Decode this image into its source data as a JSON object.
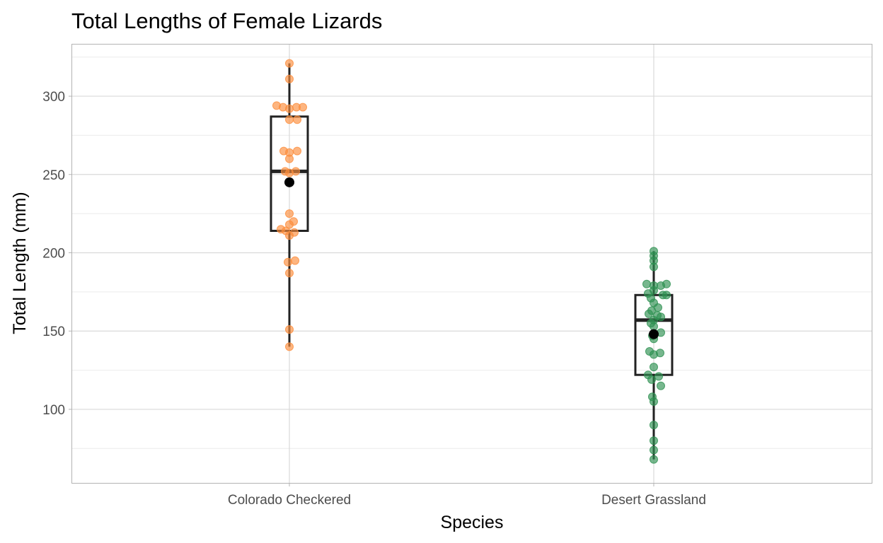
{
  "chart_data": {
    "type": "box",
    "title": "Total Lengths of Female Lizards",
    "xlabel": "Species",
    "ylabel": "Total Length (mm)",
    "categories": [
      "Colorado Checkered",
      "Desert Grassland"
    ],
    "ylim": [
      53,
      333
    ],
    "yticks": [
      100,
      150,
      200,
      250,
      300
    ],
    "grid": true,
    "colors": {
      "Colorado Checkered": "#fc8d3c",
      "Desert Grassland": "#2e9151",
      "box": "#222222",
      "mean": "#000000"
    },
    "boxes": [
      {
        "category": "Colorado Checkered",
        "min": 140,
        "q1": 214,
        "median": 252,
        "q3": 287,
        "max": 321,
        "mean": 245
      },
      {
        "category": "Desert Grassland",
        "min": 68,
        "q1": 122,
        "median": 157,
        "q3": 173,
        "max": 201,
        "mean": 148
      }
    ],
    "points": [
      {
        "category": "Colorado Checkered",
        "values": [
          321,
          311,
          294,
          293,
          293,
          293,
          292,
          285,
          285,
          265,
          265,
          264,
          260,
          252,
          252,
          251,
          225,
          220,
          218,
          215,
          214,
          213,
          211,
          195,
          194,
          187,
          151,
          140
        ],
        "jitter": [
          0,
          0,
          -18,
          -9,
          10,
          19,
          0,
          0,
          11,
          -8,
          11,
          0,
          0,
          -6,
          9,
          0,
          0,
          6,
          0,
          -12,
          -5,
          7,
          0,
          8,
          -2,
          0,
          0,
          0
        ]
      },
      {
        "category": "Desert Grassland",
        "values": [
          201,
          198,
          195,
          191,
          180,
          180,
          179,
          179,
          176,
          174,
          173,
          173,
          171,
          168,
          165,
          163,
          161,
          160,
          159,
          157,
          155,
          153,
          149,
          147,
          145,
          137,
          136,
          135,
          127,
          122,
          121,
          119,
          115,
          108,
          105,
          90,
          80,
          74,
          68
        ],
        "jitter": [
          0,
          0,
          0,
          0,
          -10,
          18,
          0,
          10,
          0,
          -8,
          13,
          18,
          -4,
          0,
          6,
          -3,
          -7,
          5,
          10,
          0,
          -4,
          0,
          10,
          -2,
          0,
          -6,
          9,
          0,
          0,
          -8,
          7,
          -3,
          10,
          -2,
          0,
          0,
          0,
          0,
          0
        ]
      }
    ]
  }
}
